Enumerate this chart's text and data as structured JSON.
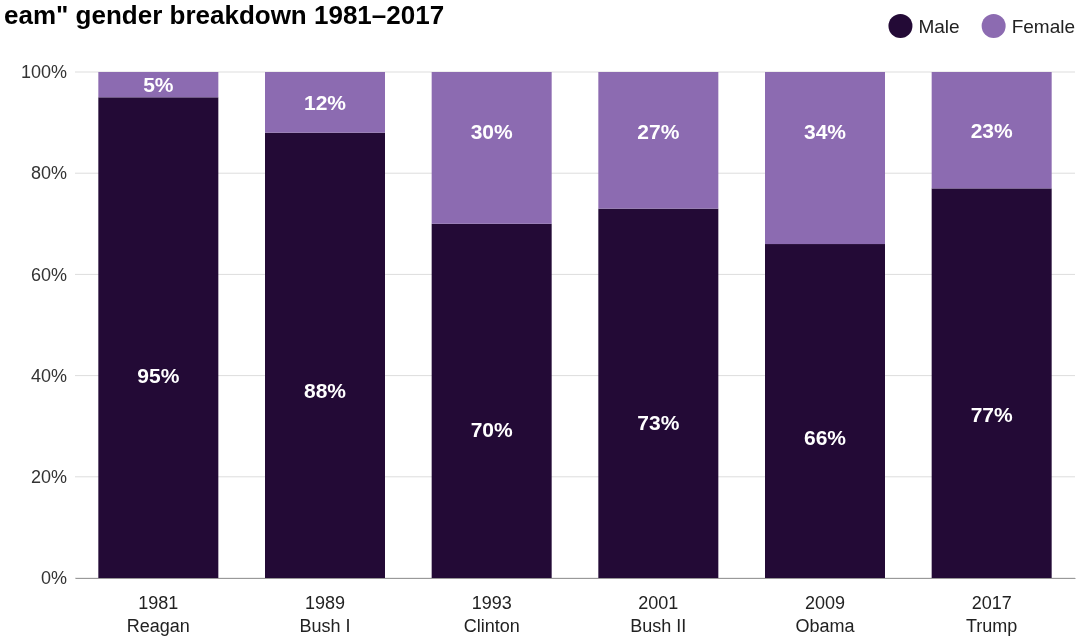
{
  "chart_data": {
    "type": "bar",
    "title": "eam\" gender breakdown 1981–2017",
    "stacked": true,
    "grid": "y",
    "legend": "top right",
    "categories": [
      "1981\nReagan",
      "1989\nBush I",
      "1993\nClinton",
      "2001\nBush II",
      "2009\nObama",
      "2017\nTrump"
    ],
    "ylim": [
      0,
      100
    ],
    "yticks": [
      {
        "value": 0,
        "label": "0%"
      },
      {
        "value": 20,
        "label": "20%"
      },
      {
        "value": 40,
        "label": "40%"
      },
      {
        "value": 60,
        "label": "60%"
      },
      {
        "value": 80,
        "label": "80%"
      },
      {
        "value": 100,
        "label": "100%"
      }
    ],
    "series": [
      {
        "name": "Male",
        "color": "#230a36",
        "values": [
          95,
          88,
          70,
          73,
          66,
          77
        ],
        "value_labels": [
          "95%",
          "88%",
          "70%",
          "73%",
          "66%",
          "77%"
        ]
      },
      {
        "name": "Female",
        "color": "#8c6bb1",
        "values": [
          5,
          12,
          30,
          27,
          34,
          23
        ],
        "value_labels": [
          "5%",
          "12%",
          "30%",
          "27%",
          "34%",
          "23%"
        ]
      }
    ]
  }
}
